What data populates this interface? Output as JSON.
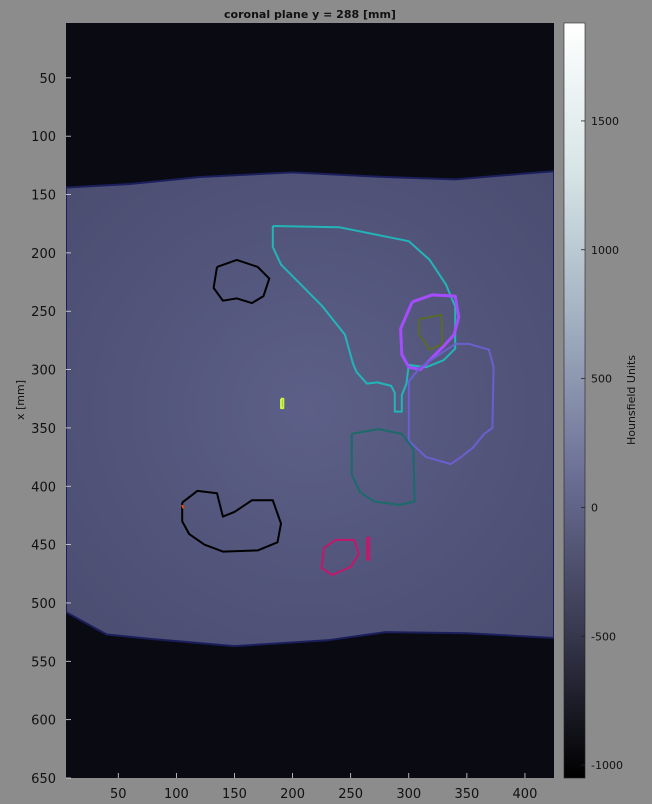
{
  "chart_data": {
    "type": "heatmap",
    "title": "coronal plane y = 288 [mm]",
    "xlabel": "",
    "ylabel": "x [mm]",
    "xlim": [
      5,
      425
    ],
    "ylim": [
      650,
      3
    ],
    "xticks": [
      50,
      100,
      150,
      200,
      250,
      300,
      350,
      400
    ],
    "yticks": [
      50,
      100,
      150,
      200,
      250,
      300,
      350,
      400,
      450,
      500,
      550,
      600,
      650
    ],
    "colorbar": {
      "label": "Hounsfield Units",
      "range": [
        -1050,
        1880
      ],
      "ticks": [
        -1000,
        -500,
        0,
        500,
        1000,
        1500
      ],
      "colormap": [
        "#000000",
        "#3a3a52",
        "#6b6f95",
        "#a0aec0",
        "#d6e4e6",
        "#ffffff"
      ]
    },
    "body": {
      "top_edge": [
        [
          5,
          144
        ],
        [
          60,
          141
        ],
        [
          120,
          135
        ],
        [
          200,
          131
        ],
        [
          280,
          135
        ],
        [
          340,
          137
        ],
        [
          400,
          132
        ],
        [
          425,
          130
        ]
      ],
      "bottom_edge": [
        [
          5,
          508
        ],
        [
          40,
          527
        ],
        [
          80,
          531
        ],
        [
          150,
          537
        ],
        [
          230,
          532
        ],
        [
          280,
          525
        ],
        [
          350,
          526
        ],
        [
          425,
          530
        ]
      ]
    },
    "contours": [
      {
        "color": "#22b5b8",
        "width": 2,
        "points": [
          [
            183,
            177
          ],
          [
            240,
            178
          ],
          [
            270,
            184
          ],
          [
            300,
            190
          ],
          [
            318,
            206
          ],
          [
            332,
            227
          ],
          [
            340,
            246
          ],
          [
            340,
            282
          ],
          [
            330,
            292
          ],
          [
            315,
            298
          ],
          [
            300,
            296
          ],
          [
            298,
            312
          ],
          [
            294,
            322
          ],
          [
            294,
            336
          ],
          [
            288,
            336
          ],
          [
            288,
            320
          ],
          [
            285,
            314
          ],
          [
            273,
            311
          ],
          [
            264,
            312
          ],
          [
            255,
            302
          ],
          [
            252,
            295
          ],
          [
            245,
            270
          ],
          [
            225,
            245
          ],
          [
            205,
            225
          ],
          [
            190,
            210
          ],
          [
            183,
            195
          ],
          [
            183,
            177
          ]
        ]
      },
      {
        "color": "#000000",
        "width": 2,
        "points": [
          [
            135,
            212
          ],
          [
            152,
            206
          ],
          [
            170,
            212
          ],
          [
            180,
            222
          ],
          [
            175,
            237
          ],
          [
            165,
            243
          ],
          [
            152,
            239
          ],
          [
            140,
            241
          ],
          [
            132,
            230
          ],
          [
            135,
            212
          ]
        ]
      },
      {
        "color": "#000000",
        "width": 2,
        "points": [
          [
            105,
            414
          ],
          [
            118,
            404
          ],
          [
            135,
            406
          ],
          [
            140,
            426
          ],
          [
            150,
            422
          ],
          [
            165,
            412
          ],
          [
            183,
            412
          ],
          [
            190,
            432
          ],
          [
            187,
            448
          ],
          [
            170,
            455
          ],
          [
            140,
            456
          ],
          [
            124,
            450
          ],
          [
            111,
            441
          ],
          [
            105,
            430
          ],
          [
            105,
            414
          ]
        ]
      },
      {
        "color": "#a64cff",
        "width": 3,
        "points": [
          [
            303,
            242
          ],
          [
            320,
            236
          ],
          [
            340,
            237
          ],
          [
            343,
            255
          ],
          [
            339,
            270
          ],
          [
            330,
            280
          ],
          [
            318,
            292
          ],
          [
            310,
            300
          ],
          [
            300,
            298
          ],
          [
            294,
            287
          ],
          [
            293,
            265
          ],
          [
            303,
            242
          ]
        ]
      },
      {
        "color": "#5a6a2a",
        "width": 2,
        "points": [
          [
            309,
            257
          ],
          [
            328,
            253
          ],
          [
            329,
            278
          ],
          [
            318,
            283
          ],
          [
            309,
            270
          ],
          [
            309,
            257
          ]
        ]
      },
      {
        "color": "#6b5fd0",
        "width": 2,
        "points": [
          [
            340,
            278
          ],
          [
            352,
            278
          ],
          [
            369,
            283
          ],
          [
            373,
            298
          ],
          [
            372,
            350
          ],
          [
            365,
            355
          ],
          [
            355,
            367
          ],
          [
            345,
            375
          ],
          [
            336,
            381
          ],
          [
            315,
            375
          ],
          [
            300,
            361
          ],
          [
            300,
            310
          ],
          [
            310,
            298
          ],
          [
            340,
            278
          ]
        ]
      },
      {
        "color": "#1a6b6a",
        "width": 2,
        "points": [
          [
            251,
            355
          ],
          [
            274,
            351
          ],
          [
            294,
            355
          ],
          [
            304,
            368
          ],
          [
            305,
            413
          ],
          [
            292,
            416
          ],
          [
            270,
            413
          ],
          [
            258,
            405
          ],
          [
            251,
            390
          ],
          [
            251,
            355
          ]
        ]
      },
      {
        "color": "#c2186b",
        "width": 2,
        "points": [
          [
            227,
            453
          ],
          [
            237,
            446
          ],
          [
            253,
            446
          ],
          [
            257,
            458
          ],
          [
            250,
            469
          ],
          [
            234,
            476
          ],
          [
            225,
            470
          ],
          [
            227,
            453
          ]
        ]
      },
      {
        "color": "#c2186b",
        "width": 2,
        "points": [
          [
            264,
            444
          ],
          [
            266,
            444
          ],
          [
            266,
            463
          ],
          [
            264,
            463
          ],
          [
            264,
            444
          ]
        ]
      },
      {
        "color": "#c8f542",
        "width": 2,
        "points": [
          [
            190,
            325
          ],
          [
            192,
            325
          ],
          [
            192,
            333
          ],
          [
            190,
            333
          ],
          [
            190,
            325
          ]
        ]
      },
      {
        "color": "#e05010",
        "width": 2,
        "points": [
          [
            105,
            416
          ],
          [
            106,
            419
          ]
        ]
      }
    ]
  }
}
